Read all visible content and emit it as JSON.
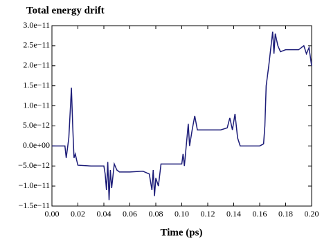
{
  "chart_data": {
    "type": "line",
    "title": "Total energy drift",
    "x_label": "Time (ps)",
    "x": [
      0,
      0.01,
      0.011,
      0.013,
      0.015,
      0.016,
      0.017,
      0.018,
      0.019,
      0.02,
      0.03,
      0.04,
      0.041,
      0.042,
      0.043,
      0.044,
      0.045,
      0.046,
      0.048,
      0.05,
      0.052,
      0.06,
      0.07,
      0.075,
      0.077,
      0.078,
      0.079,
      0.08,
      0.082,
      0.084,
      0.09,
      0.1,
      0.101,
      0.102,
      0.104,
      0.105,
      0.106,
      0.108,
      0.11,
      0.112,
      0.115,
      0.13,
      0.135,
      0.137,
      0.139,
      0.141,
      0.143,
      0.145,
      0.15,
      0.16,
      0.163,
      0.164,
      0.165,
      0.167,
      0.17,
      0.171,
      0.172,
      0.174,
      0.176,
      0.18,
      0.19,
      0.194,
      0.196,
      0.198,
      0.2
    ],
    "series": [
      {
        "color": "#1c1c78",
        "values": [
          0,
          0,
          -3e-12,
          2e-12,
          1.45e-11,
          5e-12,
          -3e-12,
          -2e-12,
          -3.5e-12,
          -4.8e-12,
          -5e-12,
          -5e-12,
          -7e-12,
          -1.1e-11,
          -4e-12,
          -1.35e-11,
          -6e-12,
          -1.05e-11,
          -4.5e-12,
          -6e-12,
          -6.5e-12,
          -6.5e-12,
          -6.3e-12,
          -7e-12,
          -1.1e-11,
          -6e-12,
          -1.25e-11,
          -8e-12,
          -1e-11,
          -4.5e-12,
          -4.5e-12,
          -4.5e-12,
          -2e-12,
          -5e-12,
          2e-12,
          5.5e-12,
          0,
          4e-12,
          7.5e-12,
          4e-12,
          4e-12,
          4e-12,
          4.5e-12,
          7e-12,
          4e-12,
          8e-12,
          2e-12,
          0,
          0,
          0,
          5e-13,
          5e-12,
          1.5e-11,
          2e-11,
          2.85e-11,
          2.3e-11,
          2.8e-11,
          2.5e-11,
          2.35e-11,
          2.4e-11,
          2.4e-11,
          2.5e-11,
          2.3e-11,
          2.45e-11,
          2e-11
        ]
      }
    ],
    "xlim": [
      0,
      0.2
    ],
    "xticks": [
      {
        "value": 0,
        "label": "0.00"
      },
      {
        "value": 0.02,
        "label": "0.02"
      },
      {
        "value": 0.04,
        "label": "0.04"
      },
      {
        "value": 0.06,
        "label": "0.06"
      },
      {
        "value": 0.08,
        "label": "0.08"
      },
      {
        "value": 0.1,
        "label": "0.10"
      },
      {
        "value": 0.12,
        "label": "0.12"
      },
      {
        "value": 0.14,
        "label": "0.14"
      },
      {
        "value": 0.16,
        "label": "0.16"
      },
      {
        "value": 0.18,
        "label": "0.18"
      },
      {
        "value": 0.2,
        "label": "0.20"
      }
    ],
    "ylim": [
      -1.5e-11,
      3e-11
    ],
    "yticks": [
      {
        "value": -1.5e-11,
        "label": "−1.5e−11"
      },
      {
        "value": -1e-11,
        "label": "−1.0e−11"
      },
      {
        "value": -5e-12,
        "label": "−5.0e−12"
      },
      {
        "value": 0,
        "label": "0.0e+00"
      },
      {
        "value": 5e-12,
        "label": "5.0e−12"
      },
      {
        "value": 1e-11,
        "label": "1.0e−11"
      },
      {
        "value": 1.5e-11,
        "label": "1.5e−11"
      },
      {
        "value": 2e-11,
        "label": "2.0e−11"
      },
      {
        "value": 2.5e-11,
        "label": "2.5e−11"
      },
      {
        "value": 3e-11,
        "label": "3.0e−11"
      }
    ]
  }
}
